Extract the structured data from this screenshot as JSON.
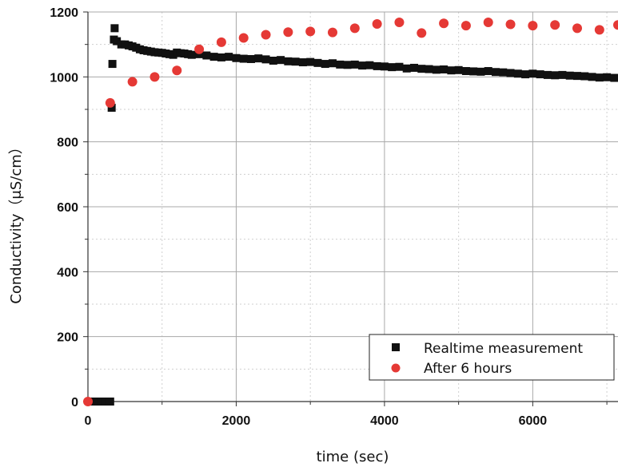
{
  "chart_data": {
    "type": "scatter",
    "xlabel": "time (sec)",
    "ylabel": "Conductivity（μS/cm）",
    "xlim": [
      0,
      7150
    ],
    "ylim": [
      0,
      1200
    ],
    "x_ticks": [
      "0",
      "2000",
      "4000",
      "6000"
    ],
    "y_ticks": [
      "0",
      "200",
      "400",
      "600",
      "800",
      "1000",
      "1200"
    ],
    "grid": true,
    "legend_position": "bottom-right",
    "series": [
      {
        "name": "Realtime measurement",
        "marker": "square",
        "color": "#111111",
        "points": [
          [
            60,
            0
          ],
          [
            120,
            0
          ],
          [
            180,
            0
          ],
          [
            240,
            0
          ],
          [
            300,
            0
          ],
          [
            320,
            905
          ],
          [
            330,
            1040
          ],
          [
            350,
            1115
          ],
          [
            360,
            1150
          ],
          [
            390,
            1110
          ],
          [
            450,
            1100
          ],
          [
            500,
            1100
          ],
          [
            550,
            1097
          ],
          [
            600,
            1094
          ],
          [
            650,
            1090
          ],
          [
            700,
            1085
          ],
          [
            750,
            1082
          ],
          [
            800,
            1080
          ],
          [
            850,
            1078
          ],
          [
            900,
            1076
          ],
          [
            950,
            1075
          ],
          [
            1000,
            1074
          ],
          [
            1050,
            1072
          ],
          [
            1100,
            1070
          ],
          [
            1150,
            1068
          ],
          [
            1200,
            1075
          ],
          [
            1250,
            1073
          ],
          [
            1300,
            1072
          ],
          [
            1350,
            1070
          ],
          [
            1400,
            1068
          ],
          [
            1500,
            1070
          ],
          [
            1600,
            1066
          ],
          [
            1700,
            1062
          ],
          [
            1800,
            1060
          ],
          [
            1900,
            1062
          ],
          [
            2000,
            1058
          ],
          [
            2100,
            1056
          ],
          [
            2200,
            1055
          ],
          [
            2300,
            1057
          ],
          [
            2400,
            1054
          ],
          [
            2500,
            1050
          ],
          [
            2600,
            1052
          ],
          [
            2700,
            1048
          ],
          [
            2800,
            1047
          ],
          [
            2900,
            1045
          ],
          [
            3000,
            1046
          ],
          [
            3100,
            1043
          ],
          [
            3200,
            1040
          ],
          [
            3300,
            1042
          ],
          [
            3400,
            1038
          ],
          [
            3500,
            1037
          ],
          [
            3600,
            1038
          ],
          [
            3700,
            1035
          ],
          [
            3800,
            1036
          ],
          [
            3900,
            1033
          ],
          [
            4000,
            1032
          ],
          [
            4100,
            1030
          ],
          [
            4200,
            1031
          ],
          [
            4300,
            1026
          ],
          [
            4400,
            1028
          ],
          [
            4500,
            1025
          ],
          [
            4600,
            1024
          ],
          [
            4700,
            1022
          ],
          [
            4800,
            1023
          ],
          [
            4900,
            1020
          ],
          [
            5000,
            1021
          ],
          [
            5100,
            1018
          ],
          [
            5200,
            1017
          ],
          [
            5300,
            1016
          ],
          [
            5400,
            1018
          ],
          [
            5500,
            1015
          ],
          [
            5600,
            1014
          ],
          [
            5700,
            1012
          ],
          [
            5800,
            1010
          ],
          [
            5900,
            1008
          ],
          [
            6000,
            1010
          ],
          [
            6100,
            1008
          ],
          [
            6200,
            1006
          ],
          [
            6300,
            1005
          ],
          [
            6400,
            1006
          ],
          [
            6500,
            1004
          ],
          [
            6600,
            1003
          ],
          [
            6700,
            1002
          ],
          [
            6800,
            1000
          ],
          [
            6900,
            998
          ],
          [
            7000,
            999
          ],
          [
            7100,
            997
          ]
        ]
      },
      {
        "name": "After 6 hours",
        "marker": "circle",
        "color": "#e53935",
        "points": [
          [
            0,
            0
          ],
          [
            300,
            920
          ],
          [
            600,
            985
          ],
          [
            900,
            1000
          ],
          [
            1200,
            1020
          ],
          [
            1500,
            1085
          ],
          [
            1800,
            1107
          ],
          [
            2100,
            1120
          ],
          [
            2400,
            1130
          ],
          [
            2700,
            1138
          ],
          [
            3000,
            1140
          ],
          [
            3300,
            1137
          ],
          [
            3600,
            1150
          ],
          [
            3900,
            1163
          ],
          [
            4200,
            1168
          ],
          [
            4500,
            1135
          ],
          [
            4800,
            1165
          ],
          [
            5100,
            1158
          ],
          [
            5400,
            1168
          ],
          [
            5700,
            1162
          ],
          [
            6000,
            1158
          ],
          [
            6300,
            1160
          ],
          [
            6600,
            1150
          ],
          [
            6900,
            1145
          ],
          [
            7150,
            1160
          ]
        ]
      }
    ]
  }
}
